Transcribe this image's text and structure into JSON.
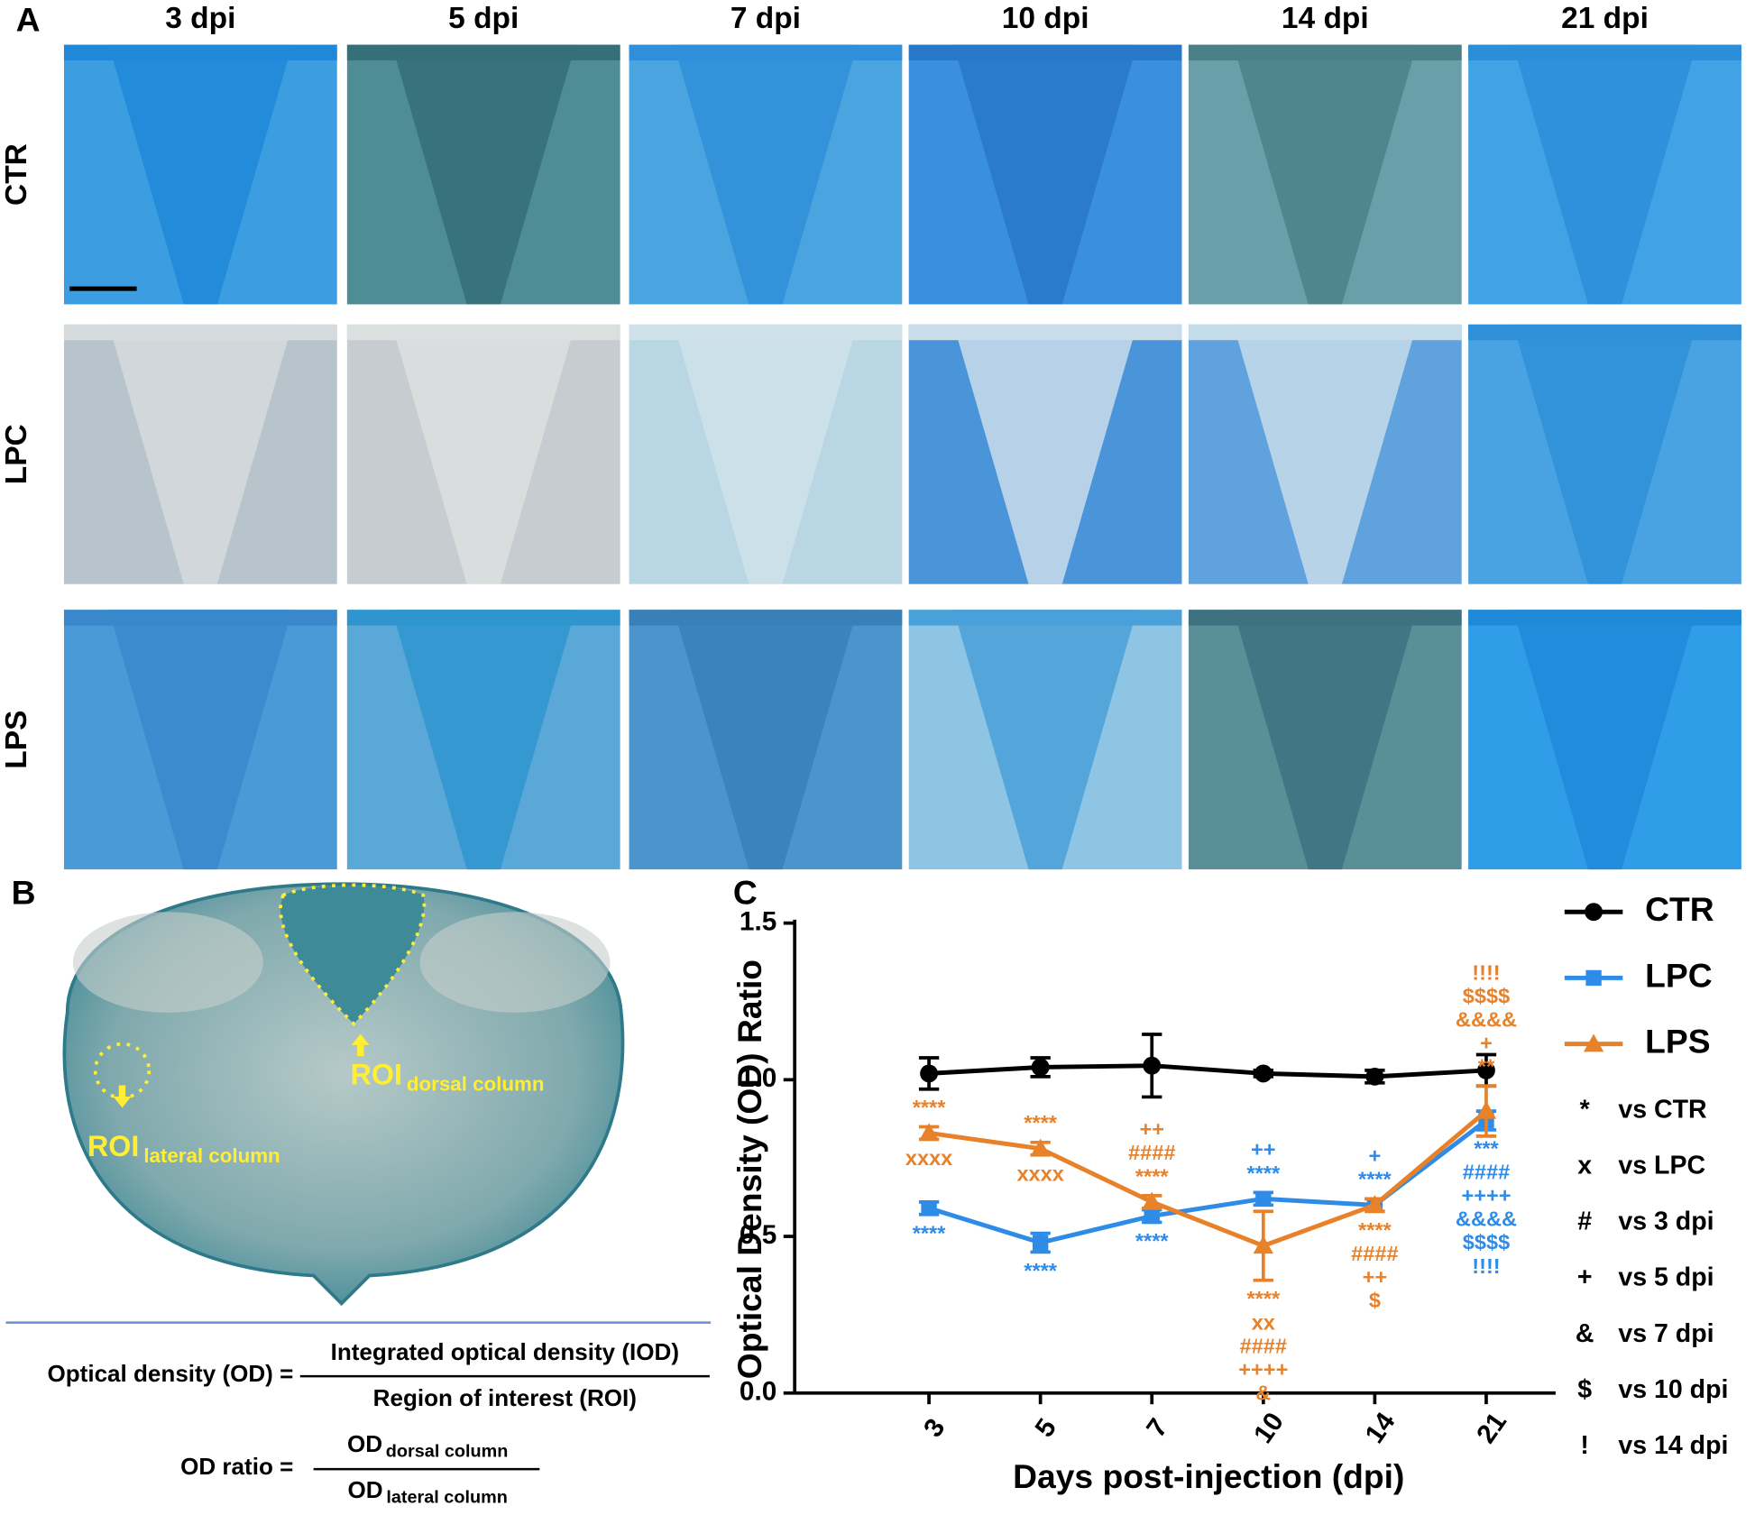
{
  "panel_a": {
    "label": "A",
    "columns": [
      "3 dpi",
      "5 dpi",
      "7 dpi",
      "10 dpi",
      "14 dpi",
      "21 dpi"
    ],
    "rows": [
      "CTR",
      "LPC",
      "LPS"
    ]
  },
  "panel_b": {
    "label": "B",
    "roi_dorsal": {
      "main": "ROI",
      "sub": "dorsal column"
    },
    "roi_lateral": {
      "main": "ROI",
      "sub": "lateral column"
    },
    "od_formula": {
      "lhs": "Optical density (OD) =",
      "numerator": "Integrated optical density (IOD)",
      "denominator": "Region of interest (ROI)"
    },
    "ratio_formula": {
      "lhs": "OD ratio =",
      "numerator": {
        "main": "OD",
        "sub": "dorsal column"
      },
      "denominator": {
        "main": "OD",
        "sub": "lateral column"
      }
    }
  },
  "chart_data": {
    "type": "line",
    "label": "C",
    "x_label": "Days post-injection (dpi)",
    "y_label": "Optical Density (OD) Ratio",
    "categories": [
      "3",
      "5",
      "7",
      "10",
      "14",
      "21"
    ],
    "ylim": [
      0,
      1.5
    ],
    "yticks": [
      {
        "value": 0,
        "label": "0.0"
      },
      0.5,
      {
        "value": 1,
        "label": "1.0"
      },
      1.5
    ],
    "series": [
      {
        "name": "CTR",
        "color": "#000000",
        "marker": "circle",
        "values": [
          1.02,
          1.04,
          1.045,
          1.02,
          1.01,
          1.03
        ],
        "errors": [
          0.05,
          0.03,
          0.1,
          0.01,
          0.02,
          0.05
        ]
      },
      {
        "name": "LPC",
        "color": "#2f8be8",
        "marker": "square",
        "values": [
          0.59,
          0.48,
          0.565,
          0.62,
          0.6,
          0.87
        ],
        "errors": [
          0.02,
          0.03,
          0.02,
          0.02,
          0.02,
          0.03
        ]
      },
      {
        "name": "LPS",
        "color": "#e8822a",
        "marker": "triangle",
        "values": [
          0.83,
          0.78,
          0.61,
          0.47,
          0.6,
          0.9
        ],
        "errors": [
          0.02,
          0.02,
          0.02,
          0.11,
          0.02,
          0.08
        ]
      }
    ],
    "annotations": [
      {
        "series": 2,
        "index": 0,
        "placement": "above",
        "lines": [
          "****"
        ]
      },
      {
        "series": 2,
        "index": 0,
        "placement": "below",
        "lines": [
          "xxxx"
        ]
      },
      {
        "series": 1,
        "index": 0,
        "placement": "below",
        "lines": [
          "****"
        ]
      },
      {
        "series": 2,
        "index": 1,
        "placement": "above",
        "lines": [
          "****"
        ]
      },
      {
        "series": 2,
        "index": 1,
        "placement": "below",
        "lines": [
          "xxxx"
        ]
      },
      {
        "series": 1,
        "index": 1,
        "placement": "below",
        "lines": [
          "****"
        ]
      },
      {
        "series": 2,
        "index": 2,
        "placement": "above",
        "lines": [
          "++",
          "####",
          "****"
        ]
      },
      {
        "series": 1,
        "index": 2,
        "placement": "below",
        "lines": [
          "****"
        ]
      },
      {
        "series": 1,
        "index": 3,
        "placement": "above",
        "lines": [
          "++",
          "****"
        ]
      },
      {
        "series": 2,
        "index": 3,
        "placement": "below",
        "lines": [
          "****",
          "xx",
          "####",
          "++++",
          "&"
        ]
      },
      {
        "series": 1,
        "index": 4,
        "placement": "above",
        "lines": [
          "+",
          "****"
        ]
      },
      {
        "series": 2,
        "index": 4,
        "placement": "below",
        "lines": [
          "****",
          "####",
          "++",
          "$"
        ]
      },
      {
        "series": 2,
        "index": 5,
        "placement": "above",
        "lines": [
          "!!!!",
          "$$$$",
          "&&&&",
          "+",
          "**"
        ]
      },
      {
        "series": 1,
        "index": 5,
        "placement": "below",
        "lines": [
          "***",
          "####",
          "++++",
          "&&&&",
          "$$$$",
          "!!!!"
        ]
      }
    ],
    "key": [
      {
        "symbol": "*",
        "text": "vs CTR"
      },
      {
        "symbol": "x",
        "text": "vs LPC"
      },
      {
        "symbol": "#",
        "text": "vs 3 dpi"
      },
      {
        "symbol": "+",
        "text": "vs 5 dpi"
      },
      {
        "symbol": "&",
        "text": "vs 7 dpi"
      },
      {
        "symbol": "$",
        "text": "vs 10 dpi"
      },
      {
        "symbol": "!",
        "text": "vs 14 dpi"
      }
    ]
  }
}
